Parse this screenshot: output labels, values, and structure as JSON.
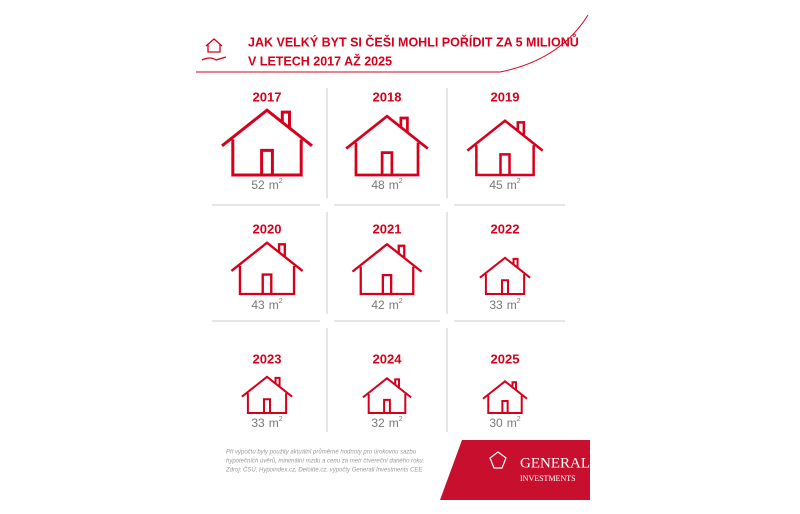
{
  "header": {
    "title_lines": [
      "JAK VELKÝ BYT SI ČEŠI MOHLI POŘÍDIT ZA 5 MILIONŮ",
      "V LETECH 2017 AŽ 2025"
    ]
  },
  "unit": "m",
  "unit_exponent": "2",
  "items": [
    {
      "year": "2017",
      "value": 52
    },
    {
      "year": "2018",
      "value": 48
    },
    {
      "year": "2019",
      "value": 45
    },
    {
      "year": "2020",
      "value": 43
    },
    {
      "year": "2021",
      "value": 42
    },
    {
      "year": "2022",
      "value": 33
    },
    {
      "year": "2023",
      "value": 33
    },
    {
      "year": "2024",
      "value": 32
    },
    {
      "year": "2025",
      "value": 30
    }
  ],
  "footnote": [
    "Při výpočtu byly použity aktuální průměrné hodnoty pro úrokovou sazbu",
    "hypotečních úvěrů, minimální mzdu a cenu za metr čtvereční daného roku.",
    "Zdroj: ČSÚ, Hypoindex.cz, Deloitte.cz, výpočty Generali Investments CEE"
  ],
  "logo": {
    "name": "GENERALI",
    "subtitle": "INVESTMENTS"
  }
}
